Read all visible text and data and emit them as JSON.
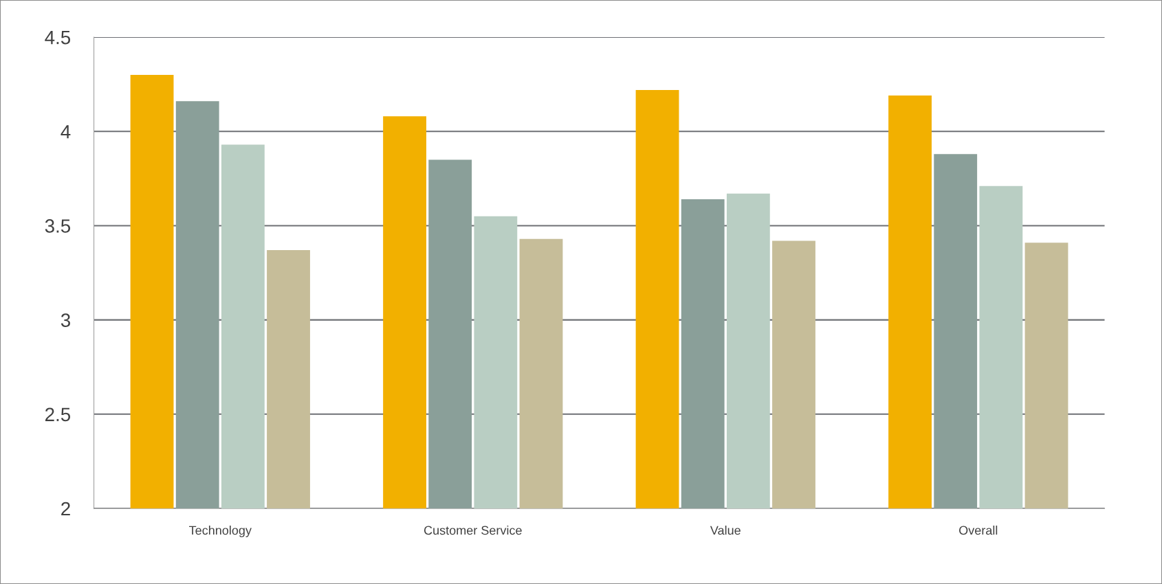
{
  "chart_data": {
    "type": "bar",
    "categories": [
      "Technology",
      "Customer Service",
      "Value",
      "Overall"
    ],
    "series": [
      {
        "color": "#f2b000",
        "values": [
          4.3,
          4.08,
          4.22,
          4.19
        ]
      },
      {
        "color": "#8a9f99",
        "values": [
          4.16,
          3.85,
          3.64,
          3.88
        ]
      },
      {
        "color": "#b9cec3",
        "values": [
          3.93,
          3.55,
          3.67,
          3.71
        ]
      },
      {
        "color": "#c6bd99",
        "values": [
          3.37,
          3.43,
          3.42,
          3.41
        ]
      }
    ],
    "ylim": [
      2,
      4.5
    ],
    "yticks": [
      2,
      2.5,
      3,
      3.5,
      4,
      4.5
    ],
    "grid": "y"
  }
}
